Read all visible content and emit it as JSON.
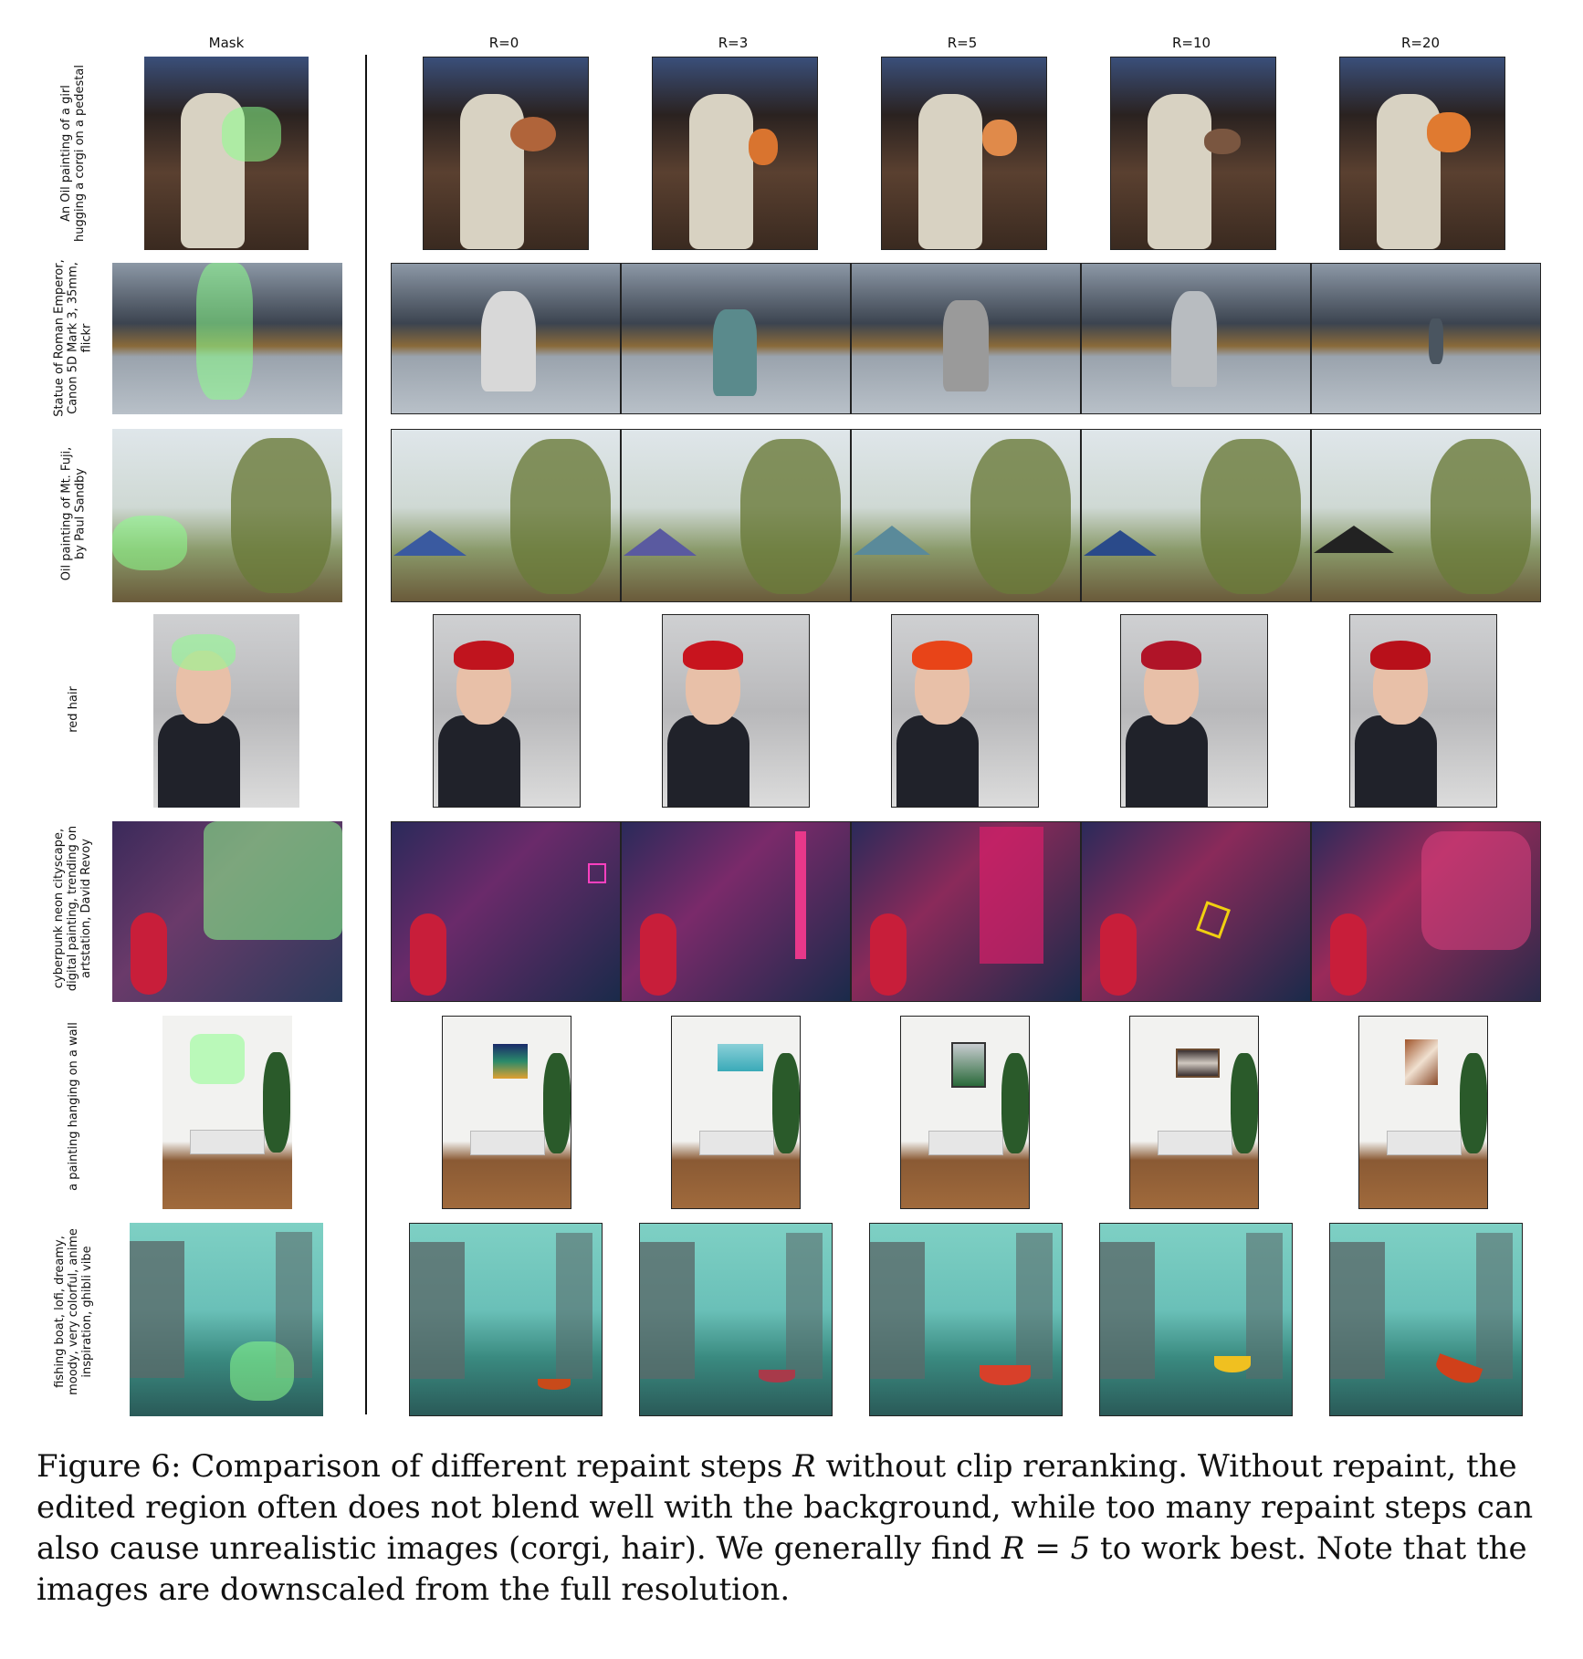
{
  "columns": [
    "Mask",
    "R=0",
    "R=3",
    "R=5",
    "R=10",
    "R=20"
  ],
  "rows": [
    {
      "label_lines": [
        "An Oil painting of a girl",
        "hugging a corgi on a pedestal"
      ]
    },
    {
      "label_lines": [
        "Statue of Roman Emperor,",
        "Canon 5D Mark 3, 35mm,",
        "flickr"
      ]
    },
    {
      "label_lines": [
        "Oil painting of Mt. Fuji,",
        "by Paul Sandby"
      ]
    },
    {
      "label_lines": [
        "red hair"
      ]
    },
    {
      "label_lines": [
        "cyberpunk neon cityscape,",
        "digital painting, trending on",
        "artstation, David Revoy"
      ]
    },
    {
      "label_lines": [
        "a painting hanging on a wall"
      ]
    },
    {
      "label_lines": [
        "fishing boat, lofi, dreamy,",
        "moody, very colorful, anime",
        "inspiration, ghibli vibe"
      ]
    }
  ],
  "caption": {
    "figure": "Figure 6:",
    "text_1": " Comparison of different repaint steps ",
    "var_R": "R",
    "text_2": " without clip reranking. Without repaint, the edited region often does not blend well with the background, while too many repaint steps can also cause unrealistic images (corgi, hair). We generally find ",
    "eq": "R = 5",
    "text_3": " to work best. Note that the images are downscaled from the full resolution."
  },
  "colors": {
    "mask_overlay": "#8cff8c",
    "divider": "#111111"
  }
}
